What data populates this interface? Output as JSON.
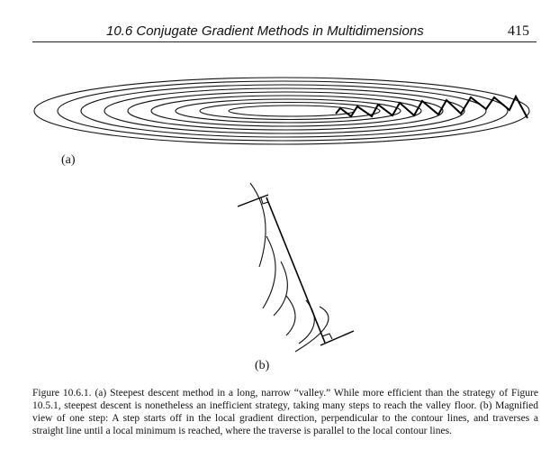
{
  "header": {
    "title": "10.6 Conjugate Gradient Methods in Multidimensions",
    "page_number": "415"
  },
  "figure": {
    "label_a": "(a)",
    "label_b": "(b)"
  },
  "caption": "Figure 10.6.1.    (a) Steepest descent method in a long, narrow “valley.” While more efficient than the strategy of Figure 10.5.1, steepest descent is nonetheless an inefficient strategy, taking many steps to reach the valley floor. (b) Magnified view of one step: A step starts off in the local gradient direction, perpendicular to the contour lines, and traverses a straight line until a local minimum is reached, where the traverse is parallel to the local contour lines."
}
